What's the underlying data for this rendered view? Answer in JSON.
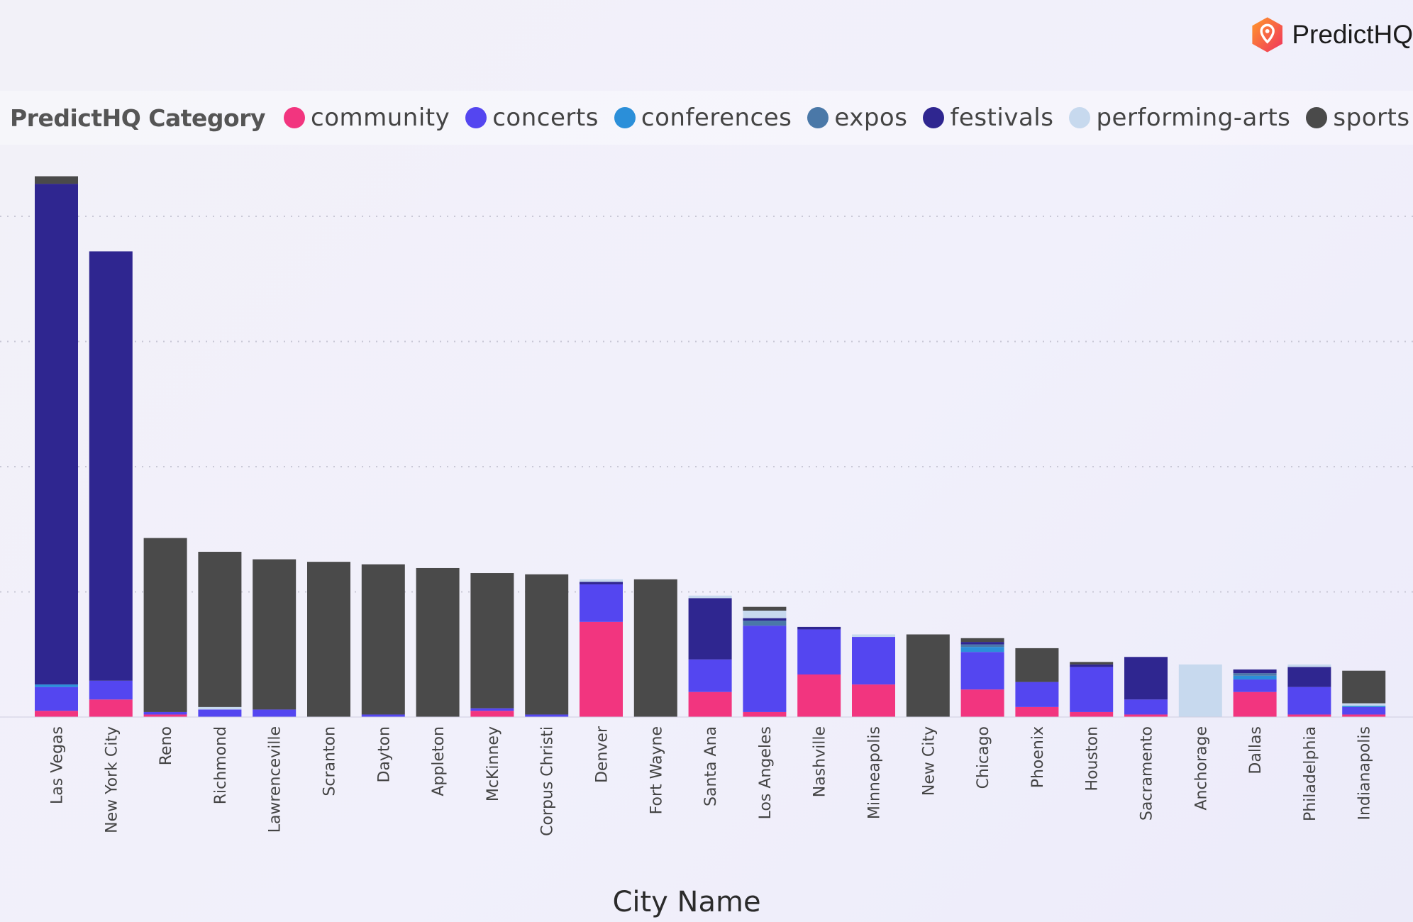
{
  "brand": {
    "name": "PredictHQ",
    "logo_icon": "predicthq-pin-logo-icon"
  },
  "legend": {
    "title": "PredictHQ Category",
    "items": [
      {
        "label": "community",
        "color": "#f2357f"
      },
      {
        "label": "concerts",
        "color": "#5446f0"
      },
      {
        "label": "conferences",
        "color": "#2b8fd9"
      },
      {
        "label": "expos",
        "color": "#4a78a8"
      },
      {
        "label": "festivals",
        "color": "#2f2690"
      },
      {
        "label": "performing-arts",
        "color": "#c7d9ee"
      },
      {
        "label": "sports",
        "color": "#4a4a4a"
      }
    ]
  },
  "chart_data": {
    "type": "bar",
    "stacked": true,
    "xlabel": "City Name",
    "ylabel": "",
    "ylim": [
      0,
      4.35
    ],
    "grid": true,
    "legend_position": "top",
    "categories": [
      "Las Vegas",
      "New York City",
      "Reno",
      "Richmond",
      "Lawrenceville",
      "Scranton",
      "Dayton",
      "Appleton",
      "McKinney",
      "Corpus Christi",
      "Denver",
      "Fort Wayne",
      "Santa Ana",
      "Los Angeles",
      "Nashville",
      "Minneapolis",
      "New City",
      "Chicago",
      "Phoenix",
      "Houston",
      "Sacramento",
      "Anchorage",
      "Dallas",
      "Philadelphia",
      "Indianapolis"
    ],
    "series": [
      {
        "name": "community",
        "color": "#f2357f",
        "values": [
          0.05,
          0.14,
          0.02,
          0.0,
          0.0,
          0.0,
          0.0,
          0.0,
          0.05,
          0.0,
          0.76,
          0.0,
          0.2,
          0.04,
          0.34,
          0.26,
          0.0,
          0.22,
          0.08,
          0.04,
          0.02,
          0.0,
          0.2,
          0.02,
          0.02
        ]
      },
      {
        "name": "concerts",
        "color": "#5446f0",
        "values": [
          0.19,
          0.15,
          0.02,
          0.06,
          0.06,
          0.0,
          0.02,
          0.0,
          0.02,
          0.02,
          0.3,
          0.0,
          0.26,
          0.69,
          0.36,
          0.38,
          0.0,
          0.3,
          0.2,
          0.36,
          0.12,
          0.0,
          0.1,
          0.22,
          0.06
        ]
      },
      {
        "name": "conferences",
        "color": "#2b8fd9",
        "values": [
          0.02,
          0.0,
          0.0,
          0.0,
          0.0,
          0.0,
          0.0,
          0.0,
          0.0,
          0.0,
          0.0,
          0.0,
          0.0,
          0.0,
          0.0,
          0.0,
          0.0,
          0.04,
          0.0,
          0.0,
          0.0,
          0.0,
          0.03,
          0.0,
          0.01
        ]
      },
      {
        "name": "expos",
        "color": "#4a78a8",
        "values": [
          0.0,
          0.0,
          0.0,
          0.0,
          0.0,
          0.0,
          0.0,
          0.0,
          0.0,
          0.0,
          0.0,
          0.0,
          0.0,
          0.04,
          0.0,
          0.0,
          0.0,
          0.02,
          0.0,
          0.0,
          0.0,
          0.0,
          0.02,
          0.0,
          0.0
        ]
      },
      {
        "name": "festivals",
        "color": "#2f2690",
        "values": [
          4.0,
          3.43,
          0.0,
          0.0,
          0.0,
          0.0,
          0.0,
          0.0,
          0.0,
          0.0,
          0.02,
          0.0,
          0.49,
          0.02,
          0.02,
          0.0,
          0.0,
          0.02,
          0.0,
          0.02,
          0.34,
          0.0,
          0.03,
          0.16,
          0.0
        ]
      },
      {
        "name": "performing-arts",
        "color": "#c7d9ee",
        "values": [
          0.0,
          0.0,
          0.0,
          0.02,
          0.0,
          0.0,
          0.0,
          0.0,
          0.0,
          0.0,
          0.02,
          0.0,
          0.02,
          0.06,
          0.0,
          0.02,
          0.0,
          0.0,
          0.0,
          0.0,
          0.0,
          0.42,
          0.0,
          0.02,
          0.02
        ]
      },
      {
        "name": "sports",
        "color": "#4a4a4a",
        "values": [
          0.06,
          0.0,
          1.39,
          1.24,
          1.2,
          1.24,
          1.2,
          1.19,
          1.08,
          1.12,
          0.0,
          1.1,
          0.0,
          0.03,
          0.0,
          0.0,
          0.66,
          0.03,
          0.27,
          0.02,
          0.0,
          0.0,
          0.0,
          0.0,
          0.26
        ]
      }
    ]
  }
}
